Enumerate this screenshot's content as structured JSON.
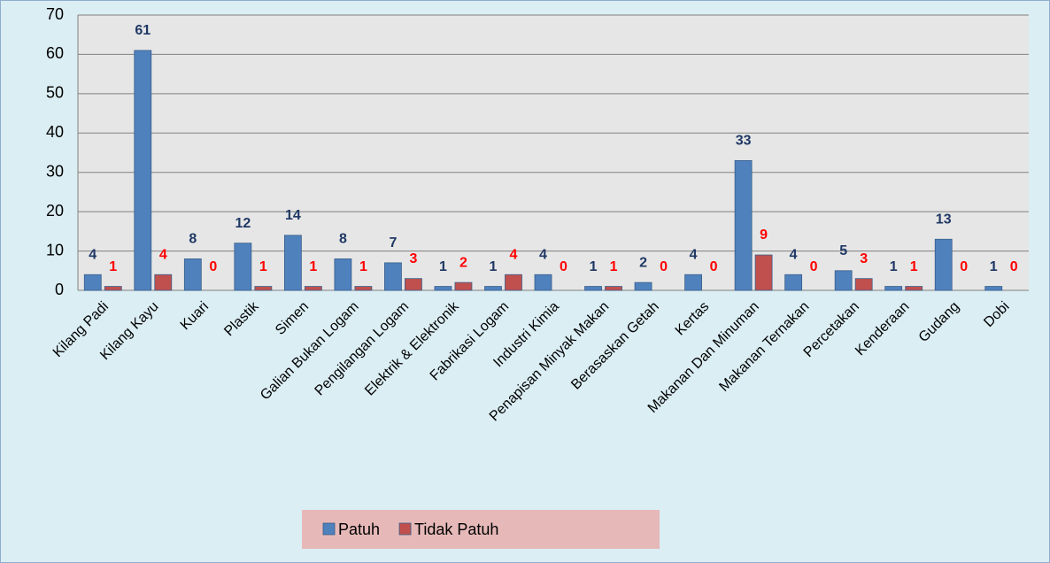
{
  "chart_data": {
    "type": "bar",
    "categories": [
      "Kilang Padi",
      "Kilang Kayu",
      "Kuari",
      "Plastik",
      "Simen",
      "Galian Bukan Logam",
      "Pengilangan Logam",
      "Elektrik & Elektronik",
      "Fabrikasi Logam",
      "Industri Kimia",
      "Penapisan Minyak Makan",
      "Berasaskan Getah",
      "Kertas",
      "Makanan Dan Minuman",
      "Makanan Ternakan",
      "Percetakan",
      "Kenderaan",
      "Gudang",
      "Dobi"
    ],
    "series": [
      {
        "name": "Patuh",
        "color": "#4f81bd",
        "label_color": "#1f3864",
        "values": [
          4,
          61,
          8,
          12,
          14,
          8,
          7,
          1,
          1,
          4,
          1,
          2,
          4,
          33,
          4,
          5,
          1,
          13,
          1
        ]
      },
      {
        "name": "Tidak Patuh",
        "color": "#c0504d",
        "label_color": "#ff0000",
        "values": [
          1,
          4,
          0,
          1,
          1,
          1,
          3,
          2,
          4,
          0,
          1,
          0,
          0,
          9,
          0,
          3,
          1,
          0,
          0
        ]
      }
    ],
    "ylim": [
      0,
      70
    ],
    "yticks": [
      0,
      10,
      20,
      30,
      40,
      50,
      60,
      70
    ],
    "grid": true,
    "legend": "bottom"
  }
}
